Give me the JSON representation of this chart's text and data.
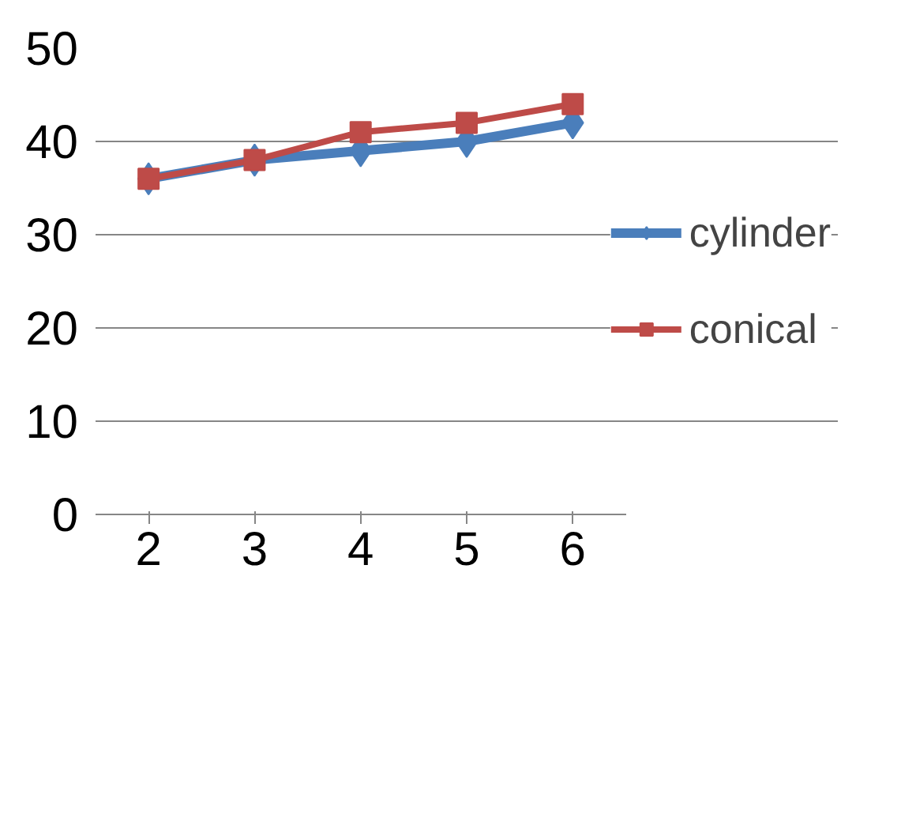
{
  "chart_data": {
    "type": "line",
    "categories": [
      "2",
      "3",
      "4",
      "5",
      "6"
    ],
    "series": [
      {
        "name": "cylinder",
        "color": "#4a7ebb",
        "marker": "diamond",
        "values": [
          36,
          38,
          39,
          40,
          42
        ]
      },
      {
        "name": "conical",
        "color": "#be4b48",
        "marker": "square",
        "values": [
          36,
          38,
          41,
          42,
          44
        ]
      }
    ],
    "ylim": [
      0,
      50
    ],
    "yticks": [
      0,
      10,
      20,
      30,
      40,
      50
    ],
    "grid": "y",
    "legend": "right"
  }
}
